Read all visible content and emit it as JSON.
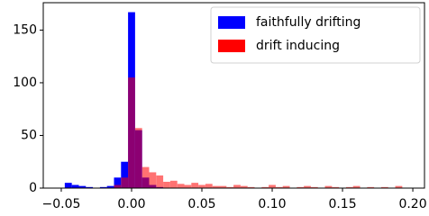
{
  "chart_data": {
    "type": "histogram",
    "bins": [
      -0.0475,
      -0.0425,
      -0.0375,
      -0.0325,
      -0.0275,
      -0.0225,
      -0.0175,
      -0.0125,
      -0.0075,
      -0.0025,
      0.0025,
      0.0075,
      0.0125,
      0.0175,
      0.0225,
      0.0275,
      0.0325,
      0.0375,
      0.0425,
      0.0475,
      0.0525,
      0.0575,
      0.0625,
      0.0675,
      0.0725,
      0.0775,
      0.0825,
      0.0875,
      0.0925,
      0.0975,
      0.1025,
      0.1075,
      0.1125,
      0.1175,
      0.1225,
      0.1275,
      0.1325,
      0.1375,
      0.1425,
      0.1475,
      0.1525,
      0.1575,
      0.1625,
      0.1675,
      0.1725,
      0.1775,
      0.1825,
      0.1875,
      0.1925
    ],
    "series": [
      {
        "name": "faithfully drifting",
        "color": "#0000ff",
        "values": [
          5,
          3,
          2,
          1,
          0,
          1,
          2,
          10,
          25,
          167,
          55,
          10,
          3,
          1,
          0,
          0,
          0,
          0,
          0,
          0,
          0,
          0,
          0,
          0,
          0,
          0,
          0,
          0,
          0,
          0,
          0,
          0,
          0,
          0,
          0,
          0,
          0,
          0,
          0,
          0,
          0,
          0,
          0,
          0,
          0,
          0,
          0,
          0
        ]
      },
      {
        "name": "drift inducing",
        "color": "#ff0000",
        "values": [
          0,
          0,
          0,
          0,
          0,
          0,
          0,
          3,
          10,
          105,
          57,
          20,
          15,
          12,
          6,
          7,
          4,
          3,
          5,
          3,
          4,
          2,
          2,
          1,
          3,
          2,
          1,
          0,
          1,
          3,
          1,
          2,
          0,
          1,
          2,
          1,
          0,
          2,
          1,
          0,
          1,
          2,
          0,
          1,
          0,
          1,
          0,
          2
        ]
      }
    ],
    "xlim": [
      -0.0628,
      0.2083
    ],
    "ylim": [
      0,
      176
    ],
    "xticks": [
      {
        "value": -0.05,
        "label": "−0.05"
      },
      {
        "value": 0,
        "label": "0.00"
      },
      {
        "value": 0.05,
        "label": "0.05"
      },
      {
        "value": 0.1,
        "label": "0.10"
      },
      {
        "value": 0.15,
        "label": "0.15"
      },
      {
        "value": 0.2,
        "label": "0.20"
      }
    ],
    "yticks": [
      0,
      50,
      100,
      150
    ],
    "legend": "upper right"
  }
}
